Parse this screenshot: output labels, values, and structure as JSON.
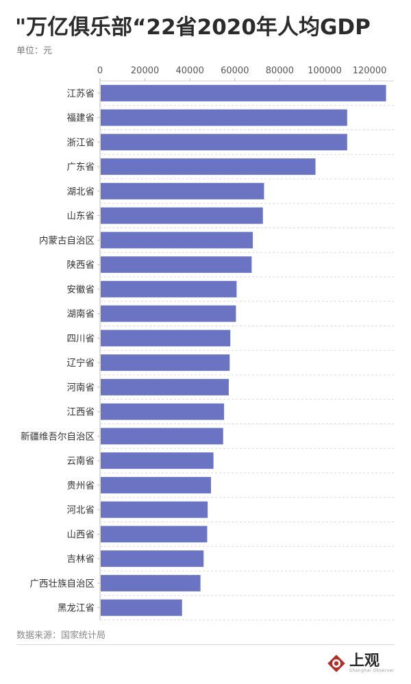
{
  "chart_data": {
    "type": "bar",
    "orientation": "horizontal",
    "title": "\"万亿俱乐部“22省2020年人均GDP",
    "unit_label": "单位：元",
    "categories": [
      "江苏省",
      "福建省",
      "浙江省",
      "广东省",
      "湖北省",
      "山东省",
      "内蒙古自治区",
      "陕西省",
      "安徽省",
      "湖南省",
      "四川省",
      "辽宁省",
      "河南省",
      "江西省",
      "新疆维吾尔自治区",
      "云南省",
      "贵州省",
      "河北省",
      "山西省",
      "吉林省",
      "广西壮族自治区",
      "黑龙江省"
    ],
    "values": [
      127300,
      110000,
      110000,
      95900,
      73000,
      72500,
      68000,
      67500,
      60800,
      60500,
      58000,
      57700,
      57300,
      55200,
      54800,
      50500,
      49400,
      47900,
      47700,
      46100,
      44700,
      36500
    ],
    "xticks": [
      "0",
      "20000",
      "40000",
      "60000",
      "80000",
      "100000",
      "120000"
    ],
    "xlim": [
      0,
      130000
    ],
    "grid": "horizontal-dashed",
    "legend": "none",
    "bar_color": "#6a74c2"
  },
  "source": "数据来源：国家统计局",
  "logo": {
    "name": "上观",
    "sub": "Shanghai Observer"
  },
  "colors": {
    "logo_red": "#b0302a"
  }
}
